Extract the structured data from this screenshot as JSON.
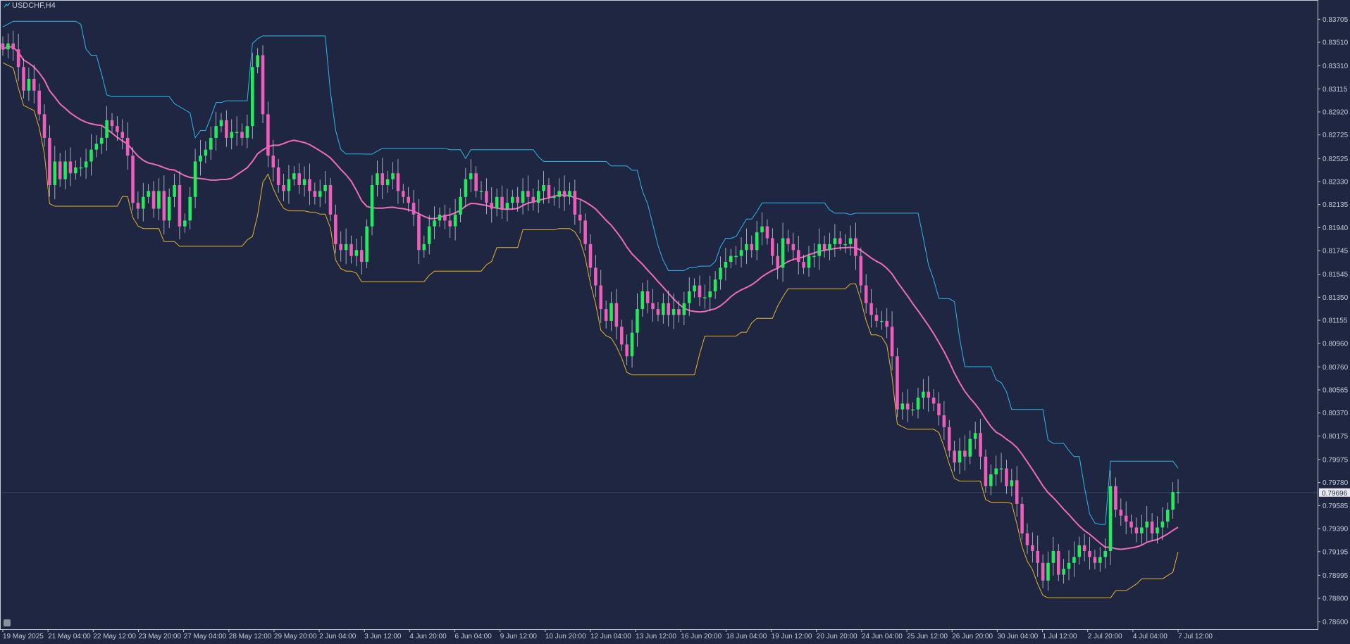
{
  "window": {
    "symbol_label": "USDCHF,H4"
  },
  "colors": {
    "background": "#1f2641",
    "frame": "#c7cbd8",
    "bull": "#19f05a",
    "bear": "#f25dbc",
    "wick": "#c7cbd8",
    "ma": "#f06bb8",
    "upper_band": "#2fb8e8",
    "lower_band": "#e5b52a",
    "price_line": "#3a4160"
  },
  "chart_data": {
    "type": "candlestick",
    "title": "USDCHF,H4",
    "ylim": [
      0.7855,
      0.8385
    ],
    "y_ticks": [
      "0.83705",
      "0.83510",
      "0.83310",
      "0.83115",
      "0.82920",
      "0.82725",
      "0.82525",
      "0.82330",
      "0.82135",
      "0.81940",
      "0.81745",
      "0.81545",
      "0.81350",
      "0.81155",
      "0.80960",
      "0.80760",
      "0.80565",
      "0.80370",
      "0.80175",
      "0.79975",
      "0.79780",
      "0.79585",
      "0.79390",
      "0.79195",
      "0.78995",
      "0.78800",
      "0.78600"
    ],
    "x_ticks": [
      "19 May 2025",
      "21 May 04:00",
      "22 May 12:00",
      "23 May 20:00",
      "27 May 04:00",
      "28 May 12:00",
      "29 May 20:00",
      "2 Jun 04:00",
      "3 Jun 12:00",
      "4 Jun 20:00",
      "6 Jun 04:00",
      "9 Jun 12:00",
      "10 Jun 20:00",
      "12 Jun 04:00",
      "13 Jun 12:00",
      "16 Jun 20:00",
      "18 Jun 04:00",
      "19 Jun 12:00",
      "20 Jun 20:00",
      "24 Jun 04:00",
      "25 Jun 12:00",
      "26 Jun 20:00",
      "30 Jun 04:00",
      "1 Jul 12:00",
      "2 Jul 20:00",
      "4 Jul 04:00",
      "7 Jul 12:00"
    ],
    "current_price": "0.79696",
    "close_series": [
      0.8345,
      0.835,
      0.8345,
      0.833,
      0.831,
      0.832,
      0.831,
      0.829,
      0.827,
      0.823,
      0.825,
      0.8235,
      0.825,
      0.824,
      0.8245,
      0.8245,
      0.825,
      0.826,
      0.8265,
      0.827,
      0.8285,
      0.828,
      0.8275,
      0.827,
      0.8255,
      0.8215,
      0.821,
      0.822,
      0.8225,
      0.821,
      0.8225,
      0.82,
      0.822,
      0.823,
      0.8195,
      0.82,
      0.822,
      0.825,
      0.8255,
      0.826,
      0.827,
      0.828,
      0.8285,
      0.827,
      0.8275,
      0.8275,
      0.827,
      0.828,
      0.833,
      0.834,
      0.829,
      0.8255,
      0.8245,
      0.823,
      0.8225,
      0.8235,
      0.824,
      0.823,
      0.8235,
      0.8225,
      0.822,
      0.8225,
      0.823,
      0.8205,
      0.818,
      0.8175,
      0.818,
      0.817,
      0.8175,
      0.8165,
      0.8195,
      0.823,
      0.824,
      0.823,
      0.8235,
      0.824,
      0.8225,
      0.822,
      0.8215,
      0.8205,
      0.8175,
      0.818,
      0.8195,
      0.82,
      0.8205,
      0.82,
      0.8195,
      0.8205,
      0.822,
      0.8235,
      0.824,
      0.8225,
      0.8225,
      0.8215,
      0.821,
      0.822,
      0.821,
      0.8215,
      0.822,
      0.8215,
      0.8225,
      0.822,
      0.8215,
      0.8225,
      0.823,
      0.822,
      0.822,
      0.8225,
      0.822,
      0.8225,
      0.8205,
      0.82,
      0.818,
      0.816,
      0.8145,
      0.8125,
      0.8115,
      0.813,
      0.811,
      0.8095,
      0.8085,
      0.8105,
      0.8125,
      0.814,
      0.813,
      0.8125,
      0.812,
      0.813,
      0.812,
      0.8125,
      0.812,
      0.813,
      0.814,
      0.8145,
      0.8135,
      0.8135,
      0.814,
      0.815,
      0.816,
      0.8165,
      0.817,
      0.817,
      0.8175,
      0.818,
      0.8175,
      0.819,
      0.8195,
      0.8185,
      0.817,
      0.816,
      0.8185,
      0.818,
      0.8175,
      0.8165,
      0.816,
      0.817,
      0.817,
      0.818,
      0.8175,
      0.818,
      0.8185,
      0.818,
      0.818,
      0.8185,
      0.817,
      0.8145,
      0.813,
      0.812,
      0.8115,
      0.8115,
      0.811,
      0.8085,
      0.804,
      0.8045,
      0.804,
      0.804,
      0.805,
      0.8055,
      0.805,
      0.8045,
      0.8035,
      0.8025,
      0.8005,
      0.7995,
      0.8005,
      0.8,
      0.8015,
      0.802,
      0.8,
      0.7975,
      0.7985,
      0.799,
      0.799,
      0.7975,
      0.798,
      0.796,
      0.7935,
      0.7925,
      0.792,
      0.791,
      0.7895,
      0.791,
      0.792,
      0.79,
      0.7905,
      0.791,
      0.7915,
      0.7925,
      0.792,
      0.7915,
      0.791,
      0.7915,
      0.792,
      0.7975,
      0.7955,
      0.795,
      0.7945,
      0.794,
      0.7935,
      0.794,
      0.7945,
      0.7935,
      0.794,
      0.7945,
      0.7955,
      0.797,
      0.797
    ]
  }
}
